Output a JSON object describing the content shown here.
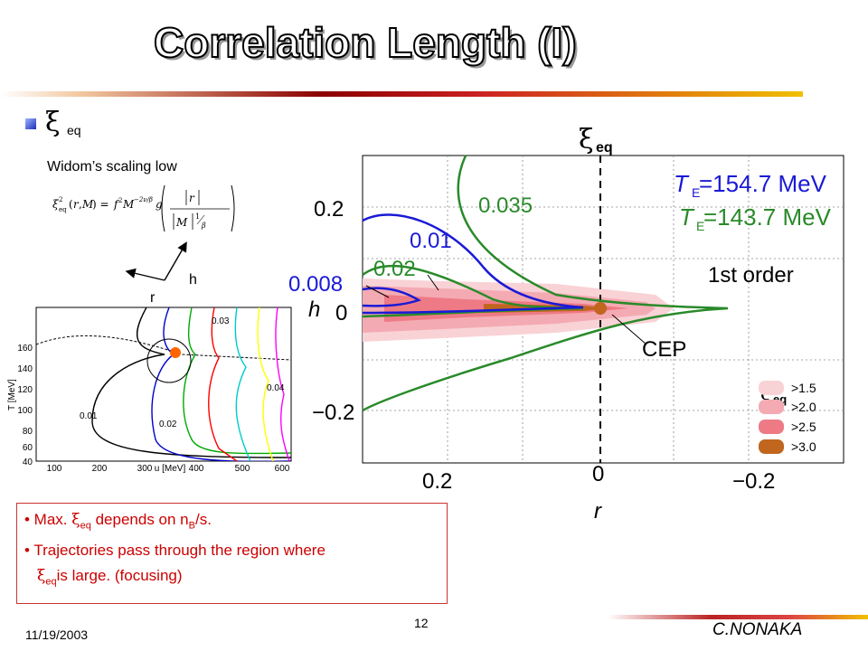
{
  "slide": {
    "title": "Correlation Length (I)",
    "bullet_symbol": "ξ",
    "bullet_sub": "eq",
    "widom": "Widom’s  scaling low",
    "axis_h": "h",
    "axis_r": "r",
    "date": "11/19/2003",
    "page": "12",
    "author": "C.NONAKA"
  },
  "notes": {
    "line1_a": "• Max. ",
    "line1_xi": "ξ",
    "line1_sub": "eq",
    "line1_b": " depends on n",
    "line1_nsub": "B",
    "line1_c": "/s.",
    "line2": "• Trajectories pass through the region where",
    "line3_xi": "ξ",
    "line3_sub": "eq",
    "line3_b": "is large.  (focusing)"
  },
  "left_plot": {
    "ylabel": "T [MeV]",
    "xlabel": "u [MeV]",
    "yticks": [
      "160",
      "140",
      "120",
      "100",
      "80",
      "60",
      "40"
    ],
    "xticks": [
      "100",
      "200",
      "300",
      "400",
      "500",
      "600"
    ],
    "labels": [
      "0.03",
      "0.04",
      "0.01",
      "0.02"
    ]
  },
  "right_plot": {
    "xi_title": "ξ",
    "xi_title_sub": "eq",
    "te1": "T",
    "te1_sub": "E",
    "te1_val": "=154.7 MeV",
    "te2": "T",
    "te2_sub": "E",
    "te2_val": "=143.7 MeV",
    "first_order": "1st order",
    "cep": "CEP",
    "lbl_0035": "0.035",
    "lbl_001": "0.01",
    "lbl_002": "0.02",
    "lbl_0008": "0.008",
    "h_label": "h",
    "r_label": "r",
    "yticks": [
      "0.2",
      "0",
      "−0.2"
    ],
    "xticks": [
      "0.2",
      "0",
      "−0.2"
    ],
    "legend_title": "ξ",
    "legend_title_sub": "eq",
    "legend": [
      ">1.5",
      ">2.0",
      ">2.5",
      ">3.0"
    ],
    "legend_colors": [
      "#f9d2d6",
      "#f4aab2",
      "#ee7a86",
      "#c0661e"
    ],
    "blue": "#1a1ad6",
    "green": "#2a8a2a"
  }
}
